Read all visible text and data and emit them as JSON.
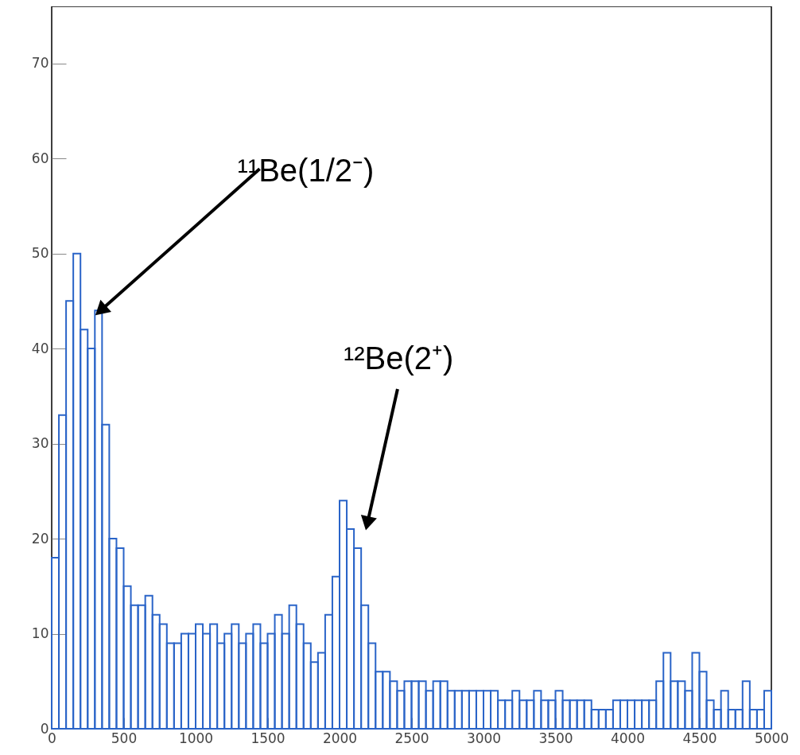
{
  "chart_data": {
    "type": "histogram",
    "color": "#2a64c8",
    "bins": [
      0,
      50,
      100,
      150,
      200,
      250,
      300,
      350,
      400,
      450,
      500,
      550,
      600,
      650,
      700,
      750,
      800,
      850,
      900,
      950,
      1000,
      1050,
      1100,
      1150,
      1200,
      1250,
      1300,
      1350,
      1400,
      1450,
      1500,
      1550,
      1600,
      1650,
      1700,
      1750,
      1800,
      1850,
      1900,
      1950,
      2000,
      2050,
      2100,
      2150,
      2200,
      2250,
      2300,
      2350,
      2400,
      2450,
      2500,
      2550,
      2600,
      2650,
      2700,
      2750,
      2800,
      2850,
      2900,
      2950,
      3000,
      3050,
      3100,
      3150,
      3200,
      3250,
      3300,
      3350,
      3400,
      3450,
      3500,
      3550,
      3600,
      3650,
      3700,
      3750,
      3800,
      3850,
      3900,
      3950,
      4000,
      4050,
      4100,
      4150,
      4200,
      4250,
      4300,
      4350,
      4400,
      4450,
      4500,
      4550,
      4600,
      4650,
      4700,
      4750,
      4800,
      4850,
      4900,
      4950,
      5000
    ],
    "values": [
      18,
      33,
      45,
      50,
      42,
      40,
      44,
      32,
      20,
      19,
      15,
      13,
      13,
      14,
      12,
      11,
      9,
      9,
      10,
      10,
      11,
      10,
      11,
      9,
      10,
      11,
      9,
      10,
      11,
      9,
      10,
      12,
      10,
      13,
      11,
      9,
      7,
      8,
      12,
      16,
      24,
      21,
      19,
      13,
      9,
      6,
      6,
      5,
      4,
      5,
      5,
      5,
      4,
      5,
      5,
      4,
      4,
      4,
      4,
      4,
      4,
      4,
      3,
      3,
      4,
      3,
      3,
      4,
      3,
      3,
      4,
      3,
      3,
      3,
      3,
      2,
      2,
      2,
      3,
      3,
      3,
      3,
      3,
      3,
      5,
      8,
      5,
      5,
      4,
      8,
      6,
      3,
      2,
      4,
      2,
      2,
      5,
      2,
      2,
      4
    ],
    "xlim": [
      0,
      5000
    ],
    "xticks": [
      0,
      500,
      1000,
      1500,
      2000,
      2500,
      3000,
      3500,
      4000,
      4500,
      5000
    ],
    "ylim": [
      0,
      76
    ],
    "yticks": [
      0,
      10,
      20,
      30,
      40,
      50,
      60,
      70
    ],
    "annotations": [
      {
        "text": "¹¹Be(1/2⁻)",
        "x": 340,
        "y": 44
      },
      {
        "text": "¹²Be(2⁺)",
        "x": 2193,
        "y": 21.6
      }
    ]
  }
}
